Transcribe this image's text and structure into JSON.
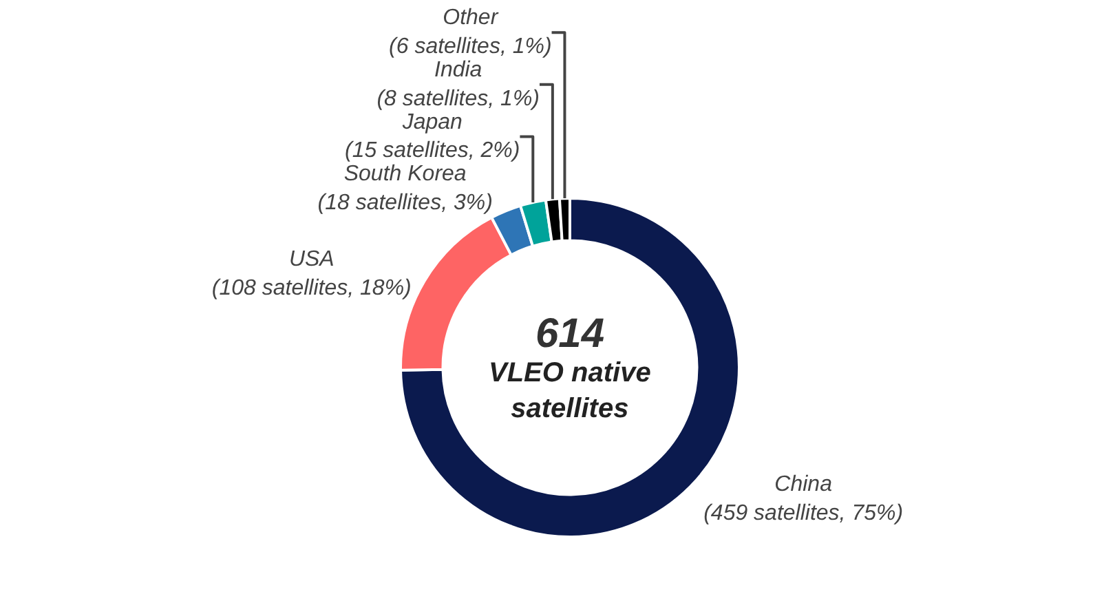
{
  "chart_data": {
    "type": "donut",
    "categories": [
      "China",
      "USA",
      "South Korea",
      "Japan",
      "India",
      "Other"
    ],
    "values": [
      459,
      108,
      18,
      15,
      8,
      6
    ],
    "colors": [
      "#0b1a4e",
      "#fe6464",
      "#2e75b6",
      "#00a39a",
      "#000000",
      "#000000"
    ],
    "value_labels": [
      "(459 satellites, 75%)",
      "(108 satellites, 18%)",
      "(18 satellites, 3%)",
      "(15 satellites, 2%)",
      "(8 satellites, 1%)",
      "(6 satellites, 1%)"
    ],
    "annotations": [
      "614",
      "VLEO native satellites"
    ],
    "legend": false
  }
}
